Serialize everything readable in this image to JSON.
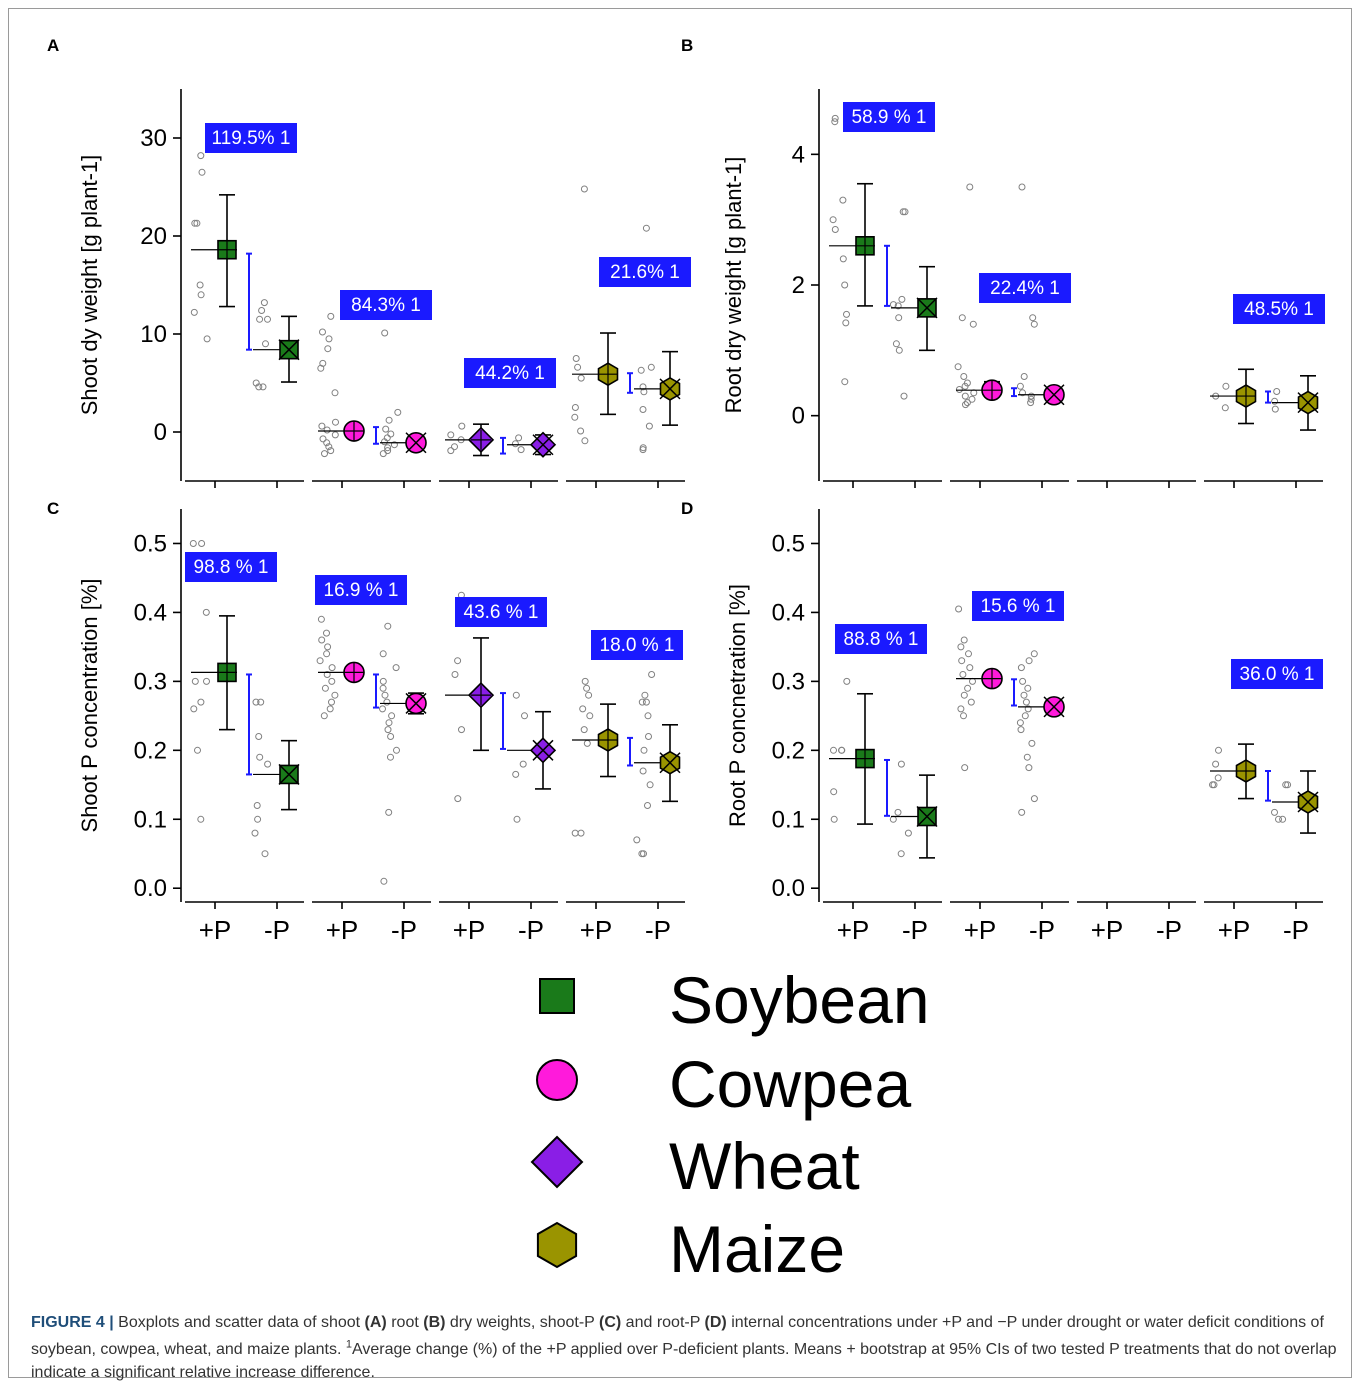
{
  "figure": {
    "caption": {
      "label": "FIGURE 4 |",
      "parts": [
        {
          "t": " Boxplots and scatter data of shoot ",
          "b": false
        },
        {
          "t": "(A)",
          "b": true
        },
        {
          "t": " root ",
          "b": false
        },
        {
          "t": "(B)",
          "b": true
        },
        {
          "t": " dry weights, shoot-P ",
          "b": false
        },
        {
          "t": "(C)",
          "b": true
        },
        {
          "t": " and root-P ",
          "b": false
        },
        {
          "t": "(D)",
          "b": true
        },
        {
          "t": " internal concentrations under +P and −P under drought or water deficit conditions of soybean, cowpea, wheat, and maize plants. ",
          "b": false
        },
        {
          "t": "1",
          "b": false,
          "sup": true
        },
        {
          "t": "Average change (%) of the +P applied over P-deficient plants. Means + bootstrap at 95% CIs of two tested P treatments that do not overlap indicate a significant relative increase difference.",
          "b": false
        }
      ]
    }
  },
  "colors": {
    "soybean": "#1a7a1a",
    "cowpea": "#ff1adb",
    "wheat": "#8a1ee6",
    "maize": "#9a9400",
    "label_box": "#1a1aff",
    "ci_bar": "#1a1aff",
    "points": "#808080"
  },
  "legend": {
    "items": [
      {
        "name": "Soybean",
        "marker": "square",
        "color": "#1a7a1a"
      },
      {
        "name": "Cowpea",
        "marker": "circle",
        "color": "#ff1adb"
      },
      {
        "name": "Wheat",
        "marker": "diamond",
        "color": "#8a1ee6"
      },
      {
        "name": "Maize",
        "marker": "hexagon",
        "color": "#9a9400"
      }
    ]
  },
  "chart_data": [
    {
      "panel": "A",
      "type": "scatter",
      "ylabel": "Shoot dy weight [g plant-1]",
      "ylim": [
        -5,
        35
      ],
      "yticks": [
        0,
        10,
        20,
        30
      ],
      "x_tick_labels_shown": false,
      "groups": [
        {
          "crop": "Soybean",
          "plus_p": {
            "mean": 18.6,
            "ci": [
              12.8,
              24.2
            ],
            "ref": 18.6
          },
          "minus_p": {
            "mean": 8.4,
            "ci": [
              5.1,
              11.8
            ],
            "ref": 8.4
          },
          "ci_bar": [
            8.4,
            18.2
          ],
          "change": "119.5% 1",
          "plus_points": [
            28.2,
            26.5,
            21.3,
            21.3,
            15.0,
            14.0,
            12.2,
            9.5
          ],
          "minus_points": [
            13.2,
            12.4,
            11.5,
            11.5,
            9.0,
            5.0,
            4.6,
            4.6
          ]
        },
        {
          "crop": "Cowpea",
          "plus_p": {
            "mean": 0.1,
            "ci": [
              -0.5,
              0.7
            ],
            "ref": 0.1
          },
          "minus_p": {
            "mean": -1.1,
            "ci": [
              -1.6,
              -0.6
            ],
            "ref": -1.1
          },
          "ci_bar": [
            -1.2,
            0.5
          ],
          "change": "84.3% 1",
          "plus_points": [
            11.8,
            10.2,
            9.5,
            8.5,
            7.0,
            6.5,
            4.0,
            1.0,
            0.6,
            0.2,
            -0.3,
            -0.7,
            -1.1,
            -1.5,
            -1.9,
            -2.2
          ],
          "minus_points": [
            10.1,
            2.0,
            1.2,
            0.3,
            -0.2,
            -0.6,
            -1.0,
            -1.3,
            -1.6,
            -1.9,
            -2.2
          ]
        },
        {
          "crop": "Wheat",
          "plus_p": {
            "mean": -0.8,
            "ci": [
              -2.4,
              0.8
            ],
            "ref": -0.8
          },
          "minus_p": {
            "mean": -1.3,
            "ci": [
              -2.3,
              -0.3
            ],
            "ref": -1.3
          },
          "ci_bar": [
            -2.2,
            -0.6
          ],
          "change": "44.2% 1",
          "plus_points": [
            0.6,
            -0.3,
            -0.8,
            -1.5,
            -1.9
          ],
          "minus_points": [
            -0.6,
            -1.2,
            -1.8
          ]
        },
        {
          "crop": "Maize",
          "plus_p": {
            "mean": 5.9,
            "ci": [
              1.8,
              10.1
            ],
            "ref": 5.9
          },
          "minus_p": {
            "mean": 4.4,
            "ci": [
              0.7,
              8.2
            ],
            "ref": 4.4
          },
          "ci_bar": [
            4.0,
            6.0
          ],
          "change": "21.6% 1",
          "plus_points": [
            24.8,
            7.5,
            6.6,
            5.5,
            2.5,
            1.5,
            0.1,
            -0.9
          ],
          "minus_points": [
            20.8,
            6.6,
            6.3,
            4.6,
            4.1,
            2.3,
            0.6,
            -1.6,
            -1.8
          ]
        }
      ]
    },
    {
      "panel": "B",
      "type": "scatter",
      "ylabel": "Root dry weight [g plant-1]",
      "ylim": [
        -1,
        5
      ],
      "yticks": [
        0,
        2,
        4
      ],
      "x_tick_labels_shown": false,
      "groups": [
        {
          "crop": "Soybean",
          "plus_p": {
            "mean": 2.6,
            "ci": [
              1.68,
              3.55
            ],
            "ref": 2.6
          },
          "minus_p": {
            "mean": 1.65,
            "ci": [
              1.0,
              2.28
            ],
            "ref": 1.65
          },
          "ci_bar": [
            1.68,
            2.6
          ],
          "change": "58.9 % 1",
          "plus_points": [
            4.55,
            4.5,
            3.3,
            3.0,
            2.85,
            2.4,
            2.0,
            1.55,
            1.42,
            0.52
          ],
          "minus_points": [
            3.12,
            3.12,
            1.78,
            1.7,
            1.68,
            1.5,
            1.1,
            1.0,
            0.3
          ]
        },
        {
          "crop": "Cowpea",
          "plus_p": {
            "mean": 0.39,
            "ci": [
              0.29,
              0.52
            ],
            "ref": 0.39
          },
          "minus_p": {
            "mean": 0.32,
            "ci": [
              0.24,
              0.4
            ],
            "ref": 0.32
          },
          "ci_bar": [
            0.3,
            0.42
          ],
          "change": "22.4% 1",
          "plus_points": [
            3.5,
            1.5,
            1.4,
            0.75,
            0.6,
            0.5,
            0.45,
            0.4,
            0.35,
            0.3,
            0.25,
            0.2,
            0.17
          ],
          "minus_points": [
            3.5,
            1.5,
            1.4,
            0.6,
            0.45,
            0.35,
            0.3,
            0.25,
            0.2
          ]
        },
        {
          "crop": "Wheat",
          "plus_p": null,
          "minus_p": null,
          "ci_bar": null,
          "change": "",
          "plus_points": [],
          "minus_points": []
        },
        {
          "crop": "Maize",
          "plus_p": {
            "mean": 0.3,
            "ci": [
              -0.12,
              0.71
            ],
            "ref": 0.3
          },
          "minus_p": {
            "mean": 0.2,
            "ci": [
              -0.22,
              0.61
            ],
            "ref": 0.2
          },
          "ci_bar": [
            0.2,
            0.37
          ],
          "change": "48.5% 1",
          "plus_points": [
            0.45,
            0.3,
            0.12
          ],
          "minus_points": [
            0.37,
            0.22,
            0.1
          ]
        }
      ]
    },
    {
      "panel": "C",
      "type": "scatter",
      "ylabel": "Shoot P concentration [%]",
      "ylim": [
        -0.02,
        0.55
      ],
      "yticks": [
        0.0,
        0.1,
        0.2,
        0.3,
        0.4,
        0.5
      ],
      "ytick_labels": [
        "0.0",
        "0.1",
        "0.2",
        "0.3",
        "0.4",
        "0.5"
      ],
      "x_tick_labels": [
        "+P",
        "-P",
        "+P",
        "-P",
        "+P",
        "-P",
        "+P",
        "-P"
      ],
      "groups": [
        {
          "crop": "Soybean",
          "plus_p": {
            "mean": 0.313,
            "ci": [
              0.23,
              0.395
            ],
            "ref": 0.313
          },
          "minus_p": {
            "mean": 0.165,
            "ci": [
              0.114,
              0.214
            ],
            "ref": 0.165
          },
          "ci_bar": [
            0.165,
            0.31
          ],
          "change": "98.8 % 1",
          "plus_points": [
            0.5,
            0.5,
            0.4,
            0.3,
            0.3,
            0.27,
            0.26,
            0.2,
            0.1
          ],
          "minus_points": [
            0.27,
            0.27,
            0.22,
            0.19,
            0.18,
            0.12,
            0.1,
            0.08,
            0.05
          ]
        },
        {
          "crop": "Cowpea",
          "plus_p": {
            "mean": 0.313,
            "ci": [
              0.305,
              0.321
            ],
            "ref": 0.313
          },
          "minus_p": {
            "mean": 0.268,
            "ci": [
              0.253,
              0.283
            ],
            "ref": 0.268
          },
          "ci_bar": [
            0.262,
            0.31
          ],
          "change": "16.9 % 1",
          "plus_points": [
            0.39,
            0.37,
            0.36,
            0.35,
            0.34,
            0.33,
            0.32,
            0.31,
            0.3,
            0.29,
            0.28,
            0.27,
            0.26,
            0.25
          ],
          "minus_points": [
            0.38,
            0.34,
            0.32,
            0.3,
            0.29,
            0.28,
            0.27,
            0.26,
            0.25,
            0.24,
            0.23,
            0.22,
            0.2,
            0.19,
            0.11,
            0.01
          ]
        },
        {
          "crop": "Wheat",
          "plus_p": {
            "mean": 0.28,
            "ci": [
              0.2,
              0.363
            ],
            "ref": 0.28
          },
          "minus_p": {
            "mean": 0.2,
            "ci": [
              0.144,
              0.256
            ],
            "ref": 0.2
          },
          "ci_bar": [
            0.202,
            0.283
          ],
          "change": "43.6 % 1",
          "plus_points": [
            0.425,
            0.33,
            0.31,
            0.23,
            0.13
          ],
          "minus_points": [
            0.28,
            0.25,
            0.18,
            0.165,
            0.1
          ]
        },
        {
          "crop": "Maize",
          "plus_p": {
            "mean": 0.215,
            "ci": [
              0.162,
              0.267
            ],
            "ref": 0.215
          },
          "minus_p": {
            "mean": 0.182,
            "ci": [
              0.126,
              0.237
            ],
            "ref": 0.182
          },
          "ci_bar": [
            0.178,
            0.218
          ],
          "change": "18.0 % 1",
          "plus_points": [
            0.3,
            0.29,
            0.28,
            0.26,
            0.25,
            0.23,
            0.21,
            0.08,
            0.08
          ],
          "minus_points": [
            0.31,
            0.28,
            0.27,
            0.27,
            0.25,
            0.22,
            0.2,
            0.17,
            0.15,
            0.12,
            0.07,
            0.05,
            0.05
          ]
        }
      ]
    },
    {
      "panel": "D",
      "type": "scatter",
      "ylabel": "Root P concnetration [%]",
      "ylim": [
        -0.02,
        0.55
      ],
      "yticks": [
        0.0,
        0.1,
        0.2,
        0.3,
        0.4,
        0.5
      ],
      "ytick_labels": [
        "0.0",
        "0.1",
        "0.2",
        "0.3",
        "0.4",
        "0.5"
      ],
      "x_tick_labels": [
        "+P",
        "-P",
        "+P",
        "-P",
        "+P",
        "-P",
        "+P",
        "-P"
      ],
      "groups": [
        {
          "crop": "Soybean",
          "plus_p": {
            "mean": 0.188,
            "ci": [
              0.093,
              0.282
            ],
            "ref": 0.188
          },
          "minus_p": {
            "mean": 0.104,
            "ci": [
              0.044,
              0.164
            ],
            "ref": 0.104
          },
          "ci_bar": [
            0.105,
            0.186
          ],
          "change": "88.8 % 1",
          "plus_points": [
            0.3,
            0.2,
            0.2,
            0.2,
            0.14,
            0.1
          ],
          "minus_points": [
            0.18,
            0.11,
            0.1,
            0.08,
            0.05
          ]
        },
        {
          "crop": "Cowpea",
          "plus_p": {
            "mean": 0.304,
            "ci": [
              0.297,
              0.311
            ],
            "ref": 0.304
          },
          "minus_p": {
            "mean": 0.263,
            "ci": [
              0.256,
              0.27
            ],
            "ref": 0.263
          },
          "ci_bar": [
            0.265,
            0.303
          ],
          "change": "15.6 % 1",
          "plus_points": [
            0.405,
            0.36,
            0.35,
            0.34,
            0.33,
            0.32,
            0.31,
            0.3,
            0.29,
            0.28,
            0.27,
            0.26,
            0.25,
            0.175
          ],
          "minus_points": [
            0.34,
            0.33,
            0.32,
            0.3,
            0.29,
            0.28,
            0.27,
            0.26,
            0.25,
            0.24,
            0.23,
            0.21,
            0.19,
            0.175,
            0.13,
            0.11
          ]
        },
        {
          "crop": "Wheat",
          "plus_p": null,
          "minus_p": null,
          "ci_bar": null,
          "change": "",
          "plus_points": [],
          "minus_points": []
        },
        {
          "crop": "Maize",
          "plus_p": {
            "mean": 0.17,
            "ci": [
              0.13,
              0.209
            ],
            "ref": 0.17
          },
          "minus_p": {
            "mean": 0.125,
            "ci": [
              0.08,
              0.17
            ],
            "ref": 0.125
          },
          "ci_bar": [
            0.127,
            0.17
          ],
          "change": "36.0 % 1",
          "plus_points": [
            0.2,
            0.18,
            0.16,
            0.15,
            0.15
          ],
          "minus_points": [
            0.15,
            0.15,
            0.11,
            0.1,
            0.1
          ]
        }
      ]
    }
  ]
}
